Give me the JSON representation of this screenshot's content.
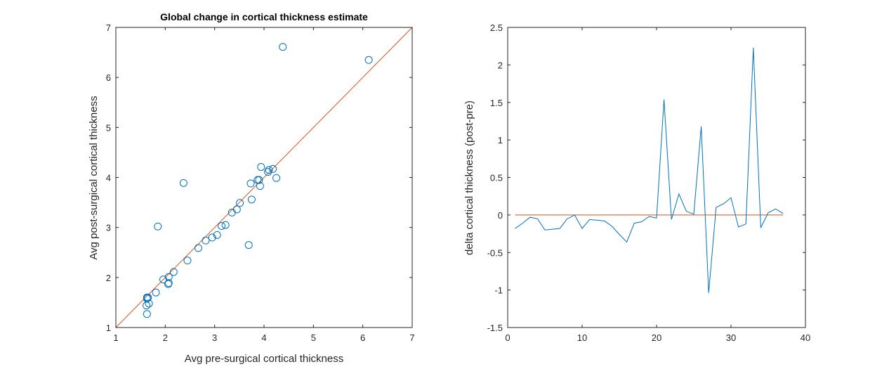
{
  "chart_data": [
    {
      "type": "scatter",
      "title": "Global change in cortical thickness estimate",
      "xlabel": "Avg pre-surgical cortical thickness",
      "ylabel": "Avg post-surgical cortical thickness",
      "xlim": [
        1,
        7
      ],
      "ylim": [
        1,
        7
      ],
      "xticks": [
        "1",
        "2",
        "3",
        "4",
        "5",
        "6",
        "7"
      ],
      "yticks": [
        "1",
        "2",
        "3",
        "4",
        "5",
        "6",
        "7"
      ],
      "grid": false,
      "colors": {
        "points": "#0072BD",
        "line": "#D95319"
      },
      "reference_line": {
        "x": [
          1,
          7
        ],
        "y": [
          1,
          7
        ]
      },
      "series": [
        {
          "points": [
            [
              1.63,
              1.27
            ],
            [
              1.62,
              1.44
            ],
            [
              1.67,
              1.48
            ],
            [
              1.63,
              1.58
            ],
            [
              1.63,
              1.6
            ],
            [
              1.81,
              1.7
            ],
            [
              1.96,
              1.96
            ],
            [
              2.06,
              1.87
            ],
            [
              2.07,
              1.89
            ],
            [
              2.07,
              2.01
            ],
            [
              2.17,
              2.11
            ],
            [
              2.45,
              2.34
            ],
            [
              2.67,
              2.59
            ],
            [
              2.82,
              2.74
            ],
            [
              2.95,
              2.8
            ],
            [
              3.05,
              2.85
            ],
            [
              3.14,
              3.03
            ],
            [
              3.22,
              3.05
            ],
            [
              3.35,
              3.3
            ],
            [
              3.45,
              3.36
            ],
            [
              3.51,
              3.49
            ],
            [
              3.69,
              2.65
            ],
            [
              3.73,
              3.88
            ],
            [
              3.75,
              3.56
            ],
            [
              3.87,
              3.95
            ],
            [
              3.9,
              3.95
            ],
            [
              3.92,
              3.83
            ],
            [
              3.94,
              4.21
            ],
            [
              4.08,
              4.11
            ],
            [
              4.1,
              4.15
            ],
            [
              4.18,
              4.17
            ],
            [
              4.25,
              3.99
            ],
            [
              1.85,
              3.02
            ],
            [
              2.37,
              3.89
            ],
            [
              4.38,
              6.61
            ],
            [
              6.12,
              6.35
            ],
            [
              1.65,
              1.6
            ]
          ]
        }
      ]
    },
    {
      "type": "line",
      "title": "",
      "xlabel": "",
      "ylabel": "delta cortical thickness (post-pre)",
      "xlim": [
        0,
        40
      ],
      "ylim": [
        -1.5,
        2.5
      ],
      "xticks": [
        "0",
        "10",
        "20",
        "30",
        "40"
      ],
      "yticks": [
        "-1.5",
        "-1",
        "-0.5",
        "0",
        "0.5",
        "1",
        "1.5",
        "2",
        "2.5"
      ],
      "grid": false,
      "colors": {
        "series": "#0072BD",
        "zero_line": "#D95319"
      },
      "zero_line": {
        "x": [
          1,
          37
        ],
        "y": [
          0,
          0
        ]
      },
      "series": [
        {
          "x": [
            1,
            2,
            3,
            4,
            5,
            6,
            7,
            8,
            9,
            10,
            11,
            12,
            13,
            14,
            15,
            16,
            17,
            18,
            19,
            20,
            21,
            22,
            23,
            24,
            25,
            26,
            27,
            28,
            29,
            30,
            31,
            32,
            33,
            34,
            35,
            36,
            37
          ],
          "values": [
            -0.18,
            -0.11,
            -0.03,
            -0.05,
            -0.2,
            -0.19,
            -0.18,
            -0.05,
            0.0,
            -0.18,
            -0.06,
            -0.07,
            -0.08,
            -0.15,
            -0.26,
            -0.36,
            -0.11,
            -0.09,
            -0.02,
            -0.04,
            1.54,
            -0.06,
            0.28,
            0.05,
            0.01,
            1.18,
            -1.04,
            0.1,
            0.15,
            0.23,
            -0.16,
            -0.12,
            2.23,
            -0.17,
            0.03,
            0.08,
            0.02
          ]
        }
      ]
    }
  ]
}
